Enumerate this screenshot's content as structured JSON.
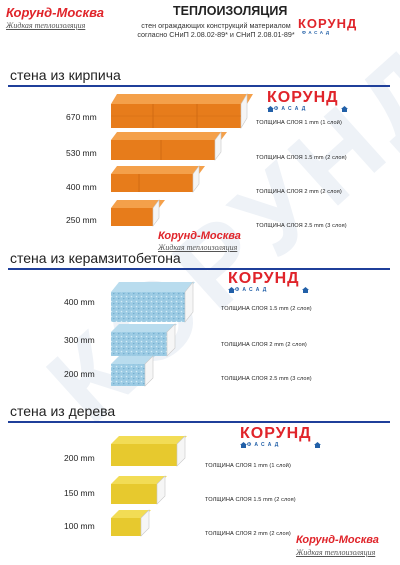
{
  "header": {
    "brand_name": "Корунд-Москва",
    "brand_sub": "Жидкая теплоизоляция",
    "title": "ТЕПЛОИЗОЛЯЦИЯ",
    "subtitle_line1": "стен ограждающих конструкций материалом",
    "subtitle_line2": "согласно СНиП 2.08.02-89* и СНиП 2.08.01-89*"
  },
  "logo": {
    "word": "КОРУНД",
    "sub": "ФАСАД"
  },
  "watermark": "КОРУНД",
  "sections": [
    {
      "title": "стена из кирпича",
      "rows": [
        {
          "dim": "670 mm",
          "caption": "ТОЛЩИНА СЛОЯ 1 mm (1 слой)"
        },
        {
          "dim": "530 mm",
          "caption": "ТОЛЩИНА СЛОЯ 1.5 mm (2 слоя)"
        },
        {
          "dim": "400 mm",
          "caption": "ТОЛЩИНА СЛОЯ 2 mm (2 слоя)"
        },
        {
          "dim": "250 mm",
          "caption": "ТОЛЩИНА СЛОЯ 2.5 mm (3 слоя)"
        }
      ]
    },
    {
      "title": "стена из керамзитобетона",
      "rows": [
        {
          "dim": "400 mm",
          "caption": "ТОЛЩИНА СЛОЯ 1.5 mm (2 слоя)"
        },
        {
          "dim": "300 mm",
          "caption": "ТОЛЩИНА СЛОЯ 2 mm (2 слоя)"
        },
        {
          "dim": "200 mm",
          "caption": "ТОЛЩИНА СЛОЯ 2.5 mm (3 слоя)"
        }
      ]
    },
    {
      "title": "стена из дерева",
      "rows": [
        {
          "dim": "200 mm",
          "caption": "ТОЛЩИНА СЛОЯ 1 mm (1 слой)"
        },
        {
          "dim": "150 mm",
          "caption": "ТОЛЩИНА СЛОЯ 1.5 mm (2 слоя)"
        },
        {
          "dim": "100 mm",
          "caption": "ТОЛЩИНА СЛОЯ 2 mm (2 слоя)"
        }
      ]
    }
  ],
  "colors": {
    "brand_red": "#e0242a",
    "rule_blue": "#1f3f9a",
    "brick": "#e8801c",
    "claydite": "#8fc6e0",
    "wood": "#e9cf3c"
  }
}
